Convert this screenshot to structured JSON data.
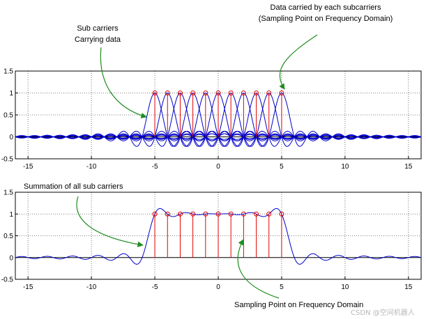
{
  "annotations": {
    "top_right_line1": "Data carried by each subcarriers",
    "top_right_line2": "(Sampling Point on Frequency Domain)",
    "top_left_line1": "Sub carriers",
    "top_left_line2": "Carrying data",
    "bottom_left": "Summation of all sub carriers",
    "bottom_right": "Sampling Point on Frequency Domain"
  },
  "watermark": "CSDN @空间机器人",
  "colors": {
    "curve": "#0000c8",
    "stem": "#e00000",
    "axis": "#000000",
    "grid": "#555555",
    "arrow": "#1e8c1e"
  },
  "chart_data": [
    {
      "type": "line",
      "title": "",
      "xlabel": "",
      "ylabel": "",
      "xlim": [
        -16,
        16
      ],
      "ylim": [
        -0.5,
        1.5
      ],
      "xticks": [
        -15,
        -10,
        -5,
        0,
        5,
        10,
        15
      ],
      "yticks": [
        -0.5,
        0,
        0.5,
        1,
        1.5
      ],
      "xtick_labels": [
        "-15",
        "-10",
        "-5",
        "0",
        "5",
        "10",
        "15"
      ],
      "ytick_labels": [
        "-0.5",
        "0",
        "0.5",
        "1",
        "1.5"
      ],
      "grid": true,
      "curve": "individual sinc subcarriers",
      "subcarrier_centers": [
        -5,
        -4,
        -3,
        -2,
        -1,
        0,
        1,
        2,
        3,
        4,
        5
      ],
      "stem_values": [
        1,
        1,
        1,
        1,
        1,
        1,
        1,
        1,
        1,
        1,
        1
      ]
    },
    {
      "type": "line",
      "title": "",
      "xlabel": "",
      "ylabel": "",
      "xlim": [
        -16,
        16
      ],
      "ylim": [
        -0.5,
        1.5
      ],
      "xticks": [
        -15,
        -10,
        -5,
        0,
        5,
        10,
        15
      ],
      "yticks": [
        -0.5,
        0,
        0.5,
        1,
        1.5
      ],
      "xtick_labels": [
        "-15",
        "-10",
        "-5",
        "0",
        "5",
        "10",
        "15"
      ],
      "ytick_labels": [
        "-0.5",
        "0",
        "0.5",
        "1",
        "1.5"
      ],
      "grid": true,
      "curve": "sum of sinc subcarriers",
      "subcarrier_centers": [
        -5,
        -4,
        -3,
        -2,
        -1,
        0,
        1,
        2,
        3,
        4,
        5
      ],
      "stem_values": [
        1,
        1,
        1,
        1,
        1,
        1,
        1,
        1,
        1,
        1,
        1
      ]
    }
  ]
}
